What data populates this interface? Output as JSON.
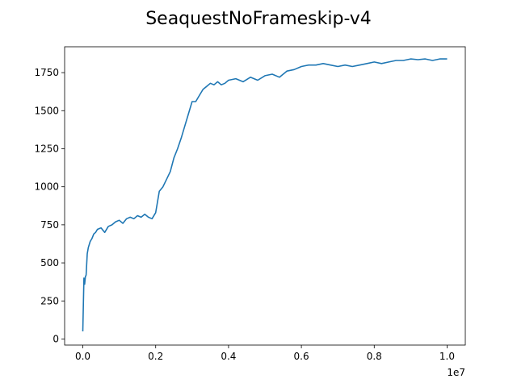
{
  "chart_data": {
    "type": "line",
    "title": "SeaquestNoFrameskip-v4",
    "xlabel": "",
    "ylabel": "",
    "x_offset_label": "1e7",
    "xlim": [
      -0.05,
      1.05
    ],
    "ylim": [
      -40,
      1920
    ],
    "x_ticks": [
      0.0,
      0.2,
      0.4,
      0.6,
      0.8,
      1.0
    ],
    "x_tick_labels": [
      "0.0",
      "0.2",
      "0.4",
      "0.6",
      "0.8",
      "1.0"
    ],
    "y_ticks": [
      0,
      250,
      500,
      750,
      1000,
      1250,
      1500,
      1750
    ],
    "y_tick_labels": [
      "0",
      "250",
      "500",
      "750",
      "1000",
      "1250",
      "1500",
      "1750"
    ],
    "grid": false,
    "line_color": "#1f77b4",
    "series": [
      {
        "x": [
          0.0,
          0.003,
          0.005,
          0.007,
          0.009,
          0.012,
          0.015,
          0.02,
          0.025,
          0.03,
          0.035,
          0.04,
          0.05,
          0.06,
          0.07,
          0.08,
          0.09,
          0.1,
          0.11,
          0.12,
          0.13,
          0.14,
          0.15,
          0.16,
          0.17,
          0.18,
          0.19,
          0.2,
          0.21,
          0.22,
          0.23,
          0.24,
          0.25,
          0.26,
          0.27,
          0.28,
          0.29,
          0.3,
          0.31,
          0.32,
          0.33,
          0.34,
          0.35,
          0.36,
          0.37,
          0.38,
          0.39,
          0.4,
          0.42,
          0.44,
          0.46,
          0.48,
          0.5,
          0.52,
          0.54,
          0.56,
          0.58,
          0.6,
          0.62,
          0.64,
          0.66,
          0.68,
          0.7,
          0.72,
          0.74,
          0.76,
          0.78,
          0.8,
          0.82,
          0.84,
          0.86,
          0.88,
          0.9,
          0.92,
          0.94,
          0.96,
          0.98,
          1.0
        ],
        "values": [
          50,
          400,
          360,
          410,
          420,
          560,
          600,
          640,
          660,
          690,
          700,
          720,
          730,
          700,
          740,
          750,
          770,
          780,
          760,
          790,
          800,
          790,
          810,
          800,
          820,
          800,
          790,
          830,
          970,
          1000,
          1050,
          1100,
          1190,
          1250,
          1320,
          1400,
          1480,
          1560,
          1560,
          1600,
          1640,
          1660,
          1680,
          1670,
          1690,
          1670,
          1680,
          1700,
          1710,
          1690,
          1720,
          1700,
          1730,
          1740,
          1720,
          1760,
          1770,
          1790,
          1800,
          1800,
          1810,
          1800,
          1790,
          1800,
          1790,
          1800,
          1810,
          1820,
          1810,
          1820,
          1830,
          1830,
          1840,
          1835,
          1840,
          1830,
          1840,
          1840
        ]
      }
    ]
  }
}
